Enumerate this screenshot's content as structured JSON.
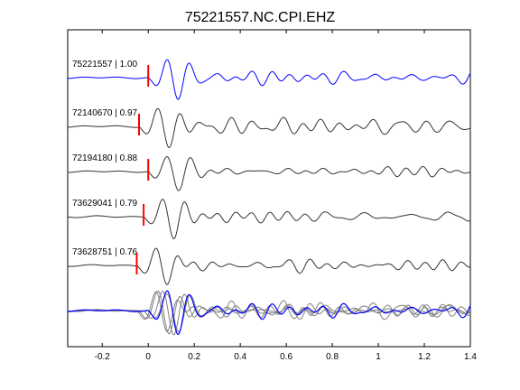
{
  "chart_data": {
    "type": "line",
    "title": "75221557.NC.CPI.EHZ",
    "xlabel": "",
    "ylabel": "",
    "xlim": [
      -0.35,
      1.4
    ],
    "x_ticks": [
      -0.2,
      0,
      0.2,
      0.4,
      0.6,
      0.8,
      1,
      1.2,
      1.4
    ],
    "x_tick_labels": [
      "-0.2",
      "0",
      "0.2",
      "0.4",
      "0.6",
      "0.8",
      "1",
      "1.2",
      "1.4"
    ],
    "grid": false,
    "legend": "none",
    "traces": [
      {
        "label": "75221557 | 1.00",
        "event_id": "75221557",
        "correlation": 1.0,
        "pick_time": 0.0,
        "color": "#0000ff",
        "amplitude_scale": 1.0
      },
      {
        "label": "72140670 | 0.97",
        "event_id": "72140670",
        "correlation": 0.97,
        "pick_time": -0.04,
        "color": "#333333",
        "amplitude_scale": 1.05
      },
      {
        "label": "72194180 | 0.88",
        "event_id": "72194180",
        "correlation": 0.88,
        "pick_time": 0.0,
        "color": "#333333",
        "amplitude_scale": 0.95
      },
      {
        "label": "73629041 | 0.79",
        "event_id": "73629041",
        "correlation": 0.79,
        "pick_time": -0.02,
        "color": "#333333",
        "amplitude_scale": 1.0
      },
      {
        "label": "73628751 | 0.76",
        "event_id": "73628751",
        "correlation": 0.76,
        "pick_time": -0.05,
        "color": "#333333",
        "amplitude_scale": 1.0
      }
    ],
    "stack": {
      "colors": {
        "reference": "#0000ff",
        "others": "#808080"
      }
    },
    "pick_marker_color": "#ff0000"
  }
}
